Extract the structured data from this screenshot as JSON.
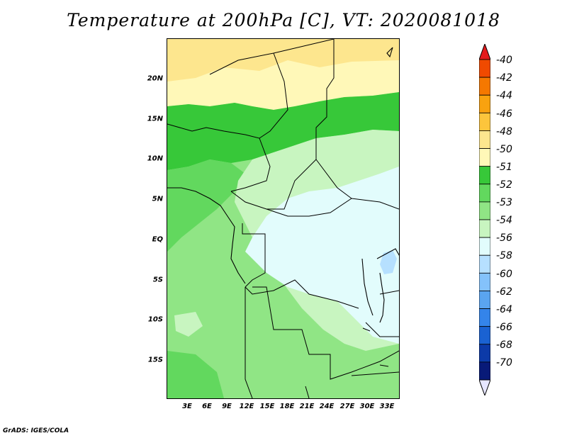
{
  "title": "Temperature at 200hPa [C], VT: 2020081018",
  "credit": "GrADS: IGES/COLA",
  "lat_labels": [
    "20N",
    "15N",
    "10N",
    "5N",
    "EQ",
    "5S",
    "10S",
    "15S"
  ],
  "lon_labels": [
    "3E",
    "6E",
    "9E",
    "12E",
    "15E",
    "18E",
    "21E",
    "24E",
    "27E",
    "30E",
    "33E"
  ],
  "colorbar": {
    "labels": [
      "-40",
      "-42",
      "-44",
      "-46",
      "-48",
      "-50",
      "-51",
      "-52",
      "-53",
      "-54",
      "-56",
      "-58",
      "-60",
      "-62",
      "-64",
      "-66",
      "-68",
      "-70"
    ],
    "colors": [
      "#e41a1c",
      "#f04a00",
      "#f57800",
      "#f9a20f",
      "#fcc53c",
      "#fde68e",
      "#fff8b8",
      "#37c839",
      "#62d85e",
      "#90e585",
      "#c8f5c0",
      "#e2fcfc",
      "#b6e0ff",
      "#84c2fb",
      "#5aa4f0",
      "#3484ea",
      "#1a62d2",
      "#0c3aa8",
      "#081a78",
      "#e6e6ff"
    ]
  }
}
